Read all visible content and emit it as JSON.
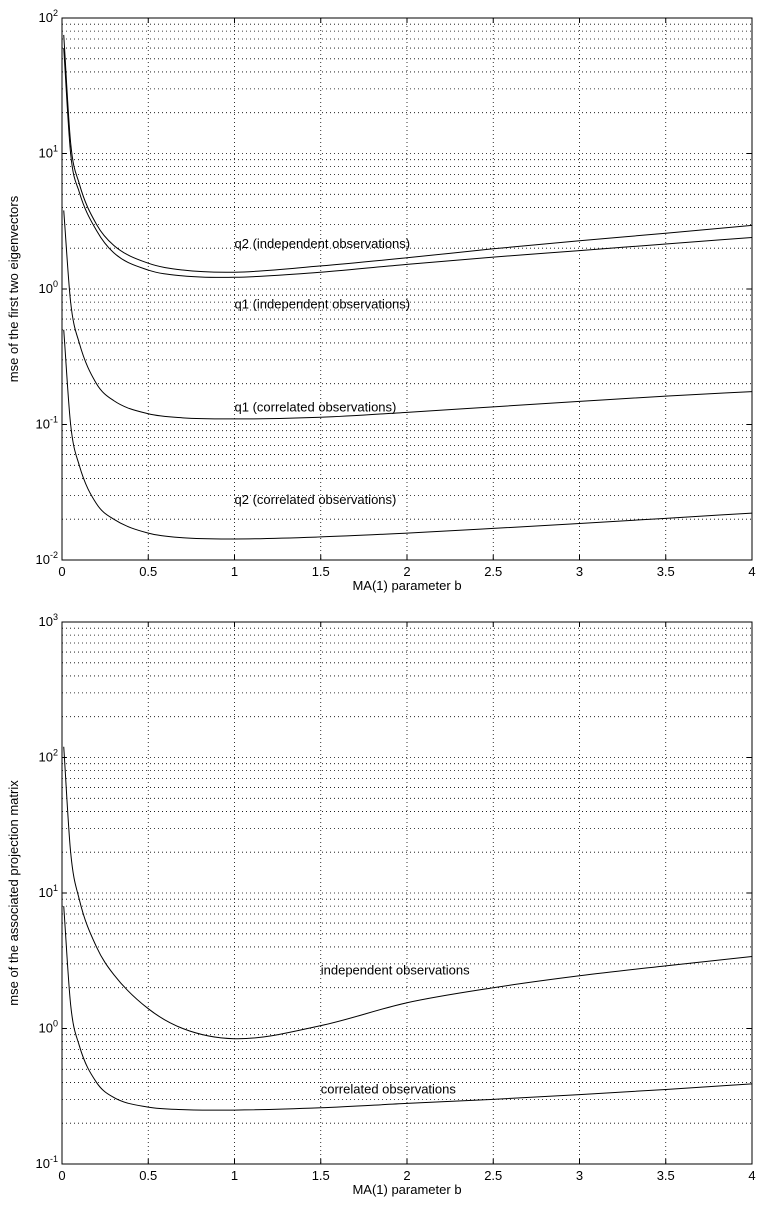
{
  "chart_data": [
    {
      "type": "line",
      "xlabel": "MA(1) parameter b",
      "ylabel": "mse of the first two eigenvectors",
      "xlim": [
        0,
        4
      ],
      "ylim": [
        0.01,
        100
      ],
      "yscale": "log",
      "grid": true,
      "xticks": [
        "0",
        "0.5",
        "1",
        "1.5",
        "2",
        "2.5",
        "3",
        "3.5",
        "4"
      ],
      "yticks": [
        {
          "base": "10",
          "exp": "-2"
        },
        {
          "base": "10",
          "exp": "-1"
        },
        {
          "base": "10",
          "exp": "0"
        },
        {
          "base": "10",
          "exp": "1"
        },
        {
          "base": "10",
          "exp": "2"
        }
      ],
      "series": [
        {
          "name": "q2 (independent observations)",
          "x": [
            0.01,
            0.05,
            0.1,
            0.2,
            0.3,
            0.5,
            0.7,
            1.0,
            1.5,
            2.0,
            2.5,
            3.0,
            3.5,
            4.0
          ],
          "y": [
            75,
            12,
            6,
            3,
            2.1,
            1.55,
            1.38,
            1.33,
            1.48,
            1.7,
            1.98,
            2.27,
            2.58,
            2.95
          ]
        },
        {
          "name": "q1 (independent observations)",
          "x": [
            0.01,
            0.05,
            0.1,
            0.2,
            0.3,
            0.5,
            0.7,
            1.0,
            1.5,
            2.0,
            2.5,
            3.0,
            3.5,
            4.0
          ],
          "y": [
            60,
            10,
            5.2,
            2.7,
            1.85,
            1.38,
            1.25,
            1.22,
            1.33,
            1.52,
            1.72,
            1.92,
            2.15,
            2.4
          ]
        },
        {
          "name": "q1 (correlated observations)",
          "x": [
            0.01,
            0.05,
            0.1,
            0.2,
            0.3,
            0.5,
            0.7,
            1.0,
            1.5,
            2.0,
            2.5,
            3.0,
            3.5,
            4.0
          ],
          "y": [
            3.8,
            0.8,
            0.4,
            0.2,
            0.15,
            0.12,
            0.112,
            0.11,
            0.113,
            0.123,
            0.135,
            0.148,
            0.162,
            0.175
          ]
        },
        {
          "name": "q2 (correlated observations)",
          "x": [
            0.01,
            0.05,
            0.1,
            0.2,
            0.3,
            0.5,
            0.7,
            1.0,
            1.5,
            2.0,
            2.5,
            3.0,
            3.5,
            4.0
          ],
          "y": [
            0.5,
            0.1,
            0.05,
            0.026,
            0.02,
            0.0158,
            0.0146,
            0.0143,
            0.0148,
            0.0158,
            0.0171,
            0.0186,
            0.0203,
            0.0222
          ]
        }
      ],
      "annotations": [
        {
          "text": "q2 (independent observations)",
          "x": 1.0,
          "y": 2.0
        },
        {
          "text": "q1 (independent observations)",
          "x": 1.0,
          "y": 0.72
        },
        {
          "text": "q1 (correlated observations)",
          "x": 1.0,
          "y": 0.125
        },
        {
          "text": "q2 (correlated observations)",
          "x": 1.0,
          "y": 0.026
        }
      ]
    },
    {
      "type": "line",
      "xlabel": "MA(1) parameter b",
      "ylabel": "mse of the associated projection matrix",
      "xlim": [
        0,
        4
      ],
      "ylim": [
        0.1,
        1000
      ],
      "yscale": "log",
      "grid": true,
      "xticks": [
        "0",
        "0.5",
        "1",
        "1.5",
        "2",
        "2.5",
        "3",
        "3.5",
        "4"
      ],
      "yticks": [
        {
          "base": "10",
          "exp": "-1"
        },
        {
          "base": "10",
          "exp": "0"
        },
        {
          "base": "10",
          "exp": "1"
        },
        {
          "base": "10",
          "exp": "2"
        },
        {
          "base": "10",
          "exp": "3"
        }
      ],
      "series": [
        {
          "name": "independent observations",
          "x": [
            0.01,
            0.05,
            0.1,
            0.2,
            0.3,
            0.5,
            0.7,
            1.0,
            1.5,
            2.0,
            2.5,
            3.0,
            3.5,
            4.0
          ],
          "y": [
            120,
            20,
            9,
            4,
            2.5,
            1.4,
            1.0,
            0.84,
            1.05,
            1.55,
            2.0,
            2.45,
            2.9,
            3.4
          ]
        },
        {
          "name": "correlated observations",
          "x": [
            0.01,
            0.05,
            0.1,
            0.2,
            0.3,
            0.5,
            0.7,
            1.0,
            1.5,
            2.0,
            2.5,
            3.0,
            3.5,
            4.0
          ],
          "y": [
            8,
            1.5,
            0.75,
            0.4,
            0.31,
            0.263,
            0.252,
            0.25,
            0.26,
            0.28,
            0.3,
            0.325,
            0.355,
            0.39
          ]
        }
      ],
      "annotations": [
        {
          "text": "independent observations",
          "x": 1.5,
          "y": 2.5
        },
        {
          "text": "correlated observations",
          "x": 1.5,
          "y": 0.33
        }
      ]
    }
  ]
}
